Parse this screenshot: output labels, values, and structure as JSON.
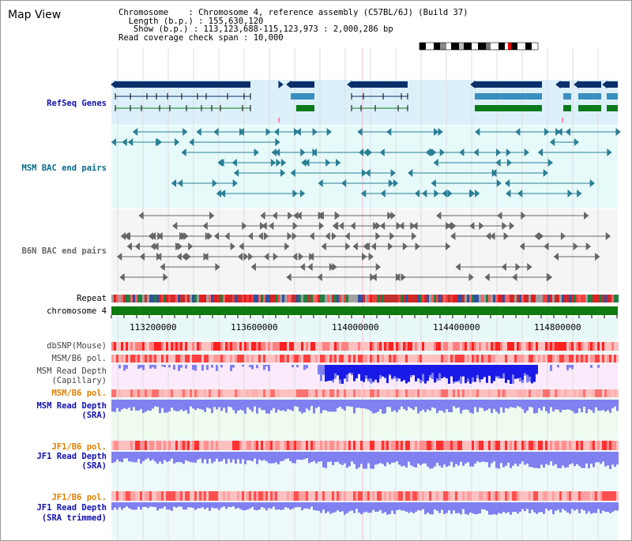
{
  "page": {
    "title": "Map View"
  },
  "header": {
    "chromosome_label": "Chromosome    : ",
    "chromosome_value": "Chromosome 4, reference assembly (C57BL/6J) (Build 37)",
    "length_label": "  Length (b.p.) : ",
    "length_value": "155,630,120",
    "show_label": "   Show (b.p.) : ",
    "show_value": "113,123,688-115,123,973 : 2,000,286 bp",
    "coverage_label": "Read coverage check span : ",
    "coverage_value": "10,000"
  },
  "tracks": {
    "refseq": "RefSeq Genes",
    "msm_bac": "MSM BAC end pairs",
    "b6n_bac": "B6N BAC end pairs",
    "repeat": "Repeat",
    "chromosome": "chromosome 4",
    "dbsnp": "dbSNP(Mouse)",
    "msm_b6_pol1": "MSM/B6 pol.",
    "msm_depth_cap_1": "MSM Read Depth",
    "msm_depth_cap_2": "(Capillary)",
    "msm_b6_pol2": "MSM/B6 pol.",
    "msm_depth_sra_1": "MSM Read Depth",
    "msm_depth_sra_2": "(SRA)",
    "jf1_b6_pol1": "JF1/B6 pol.",
    "jf1_depth_sra_1": "JF1 Read Depth",
    "jf1_depth_sra_2": "(SRA)",
    "jf1_b6_pol2": "JF1/B6 pol.",
    "jf1_depth_trim_1": "JF1 Read Depth",
    "jf1_depth_trim_2": "(SRA trimmed)"
  },
  "axis": {
    "ticks": [
      "113200000",
      "113600000",
      "114000000",
      "114400000",
      "114800000"
    ]
  },
  "colors": {
    "refseq_bg": "#dcf0fa",
    "msm_bac_bg": "#e6fafa",
    "b6n_bac_bg": "#f5f5f5",
    "gene_dark": "#0a2f6b",
    "gene_mid": "#3a8fbf",
    "gene_green": "#0b7a1a",
    "msm_pair": "#2b7f95",
    "b6n_pair": "#666666",
    "chromosome": "#0f7a12",
    "depth_blue": "#1a1ae8",
    "depth_light": "#8080f0",
    "snp_red": "#ff2020",
    "pol_orange": "#e08000",
    "label_blue": "#1010b0",
    "label_teal": "#0a6a8a"
  }
}
